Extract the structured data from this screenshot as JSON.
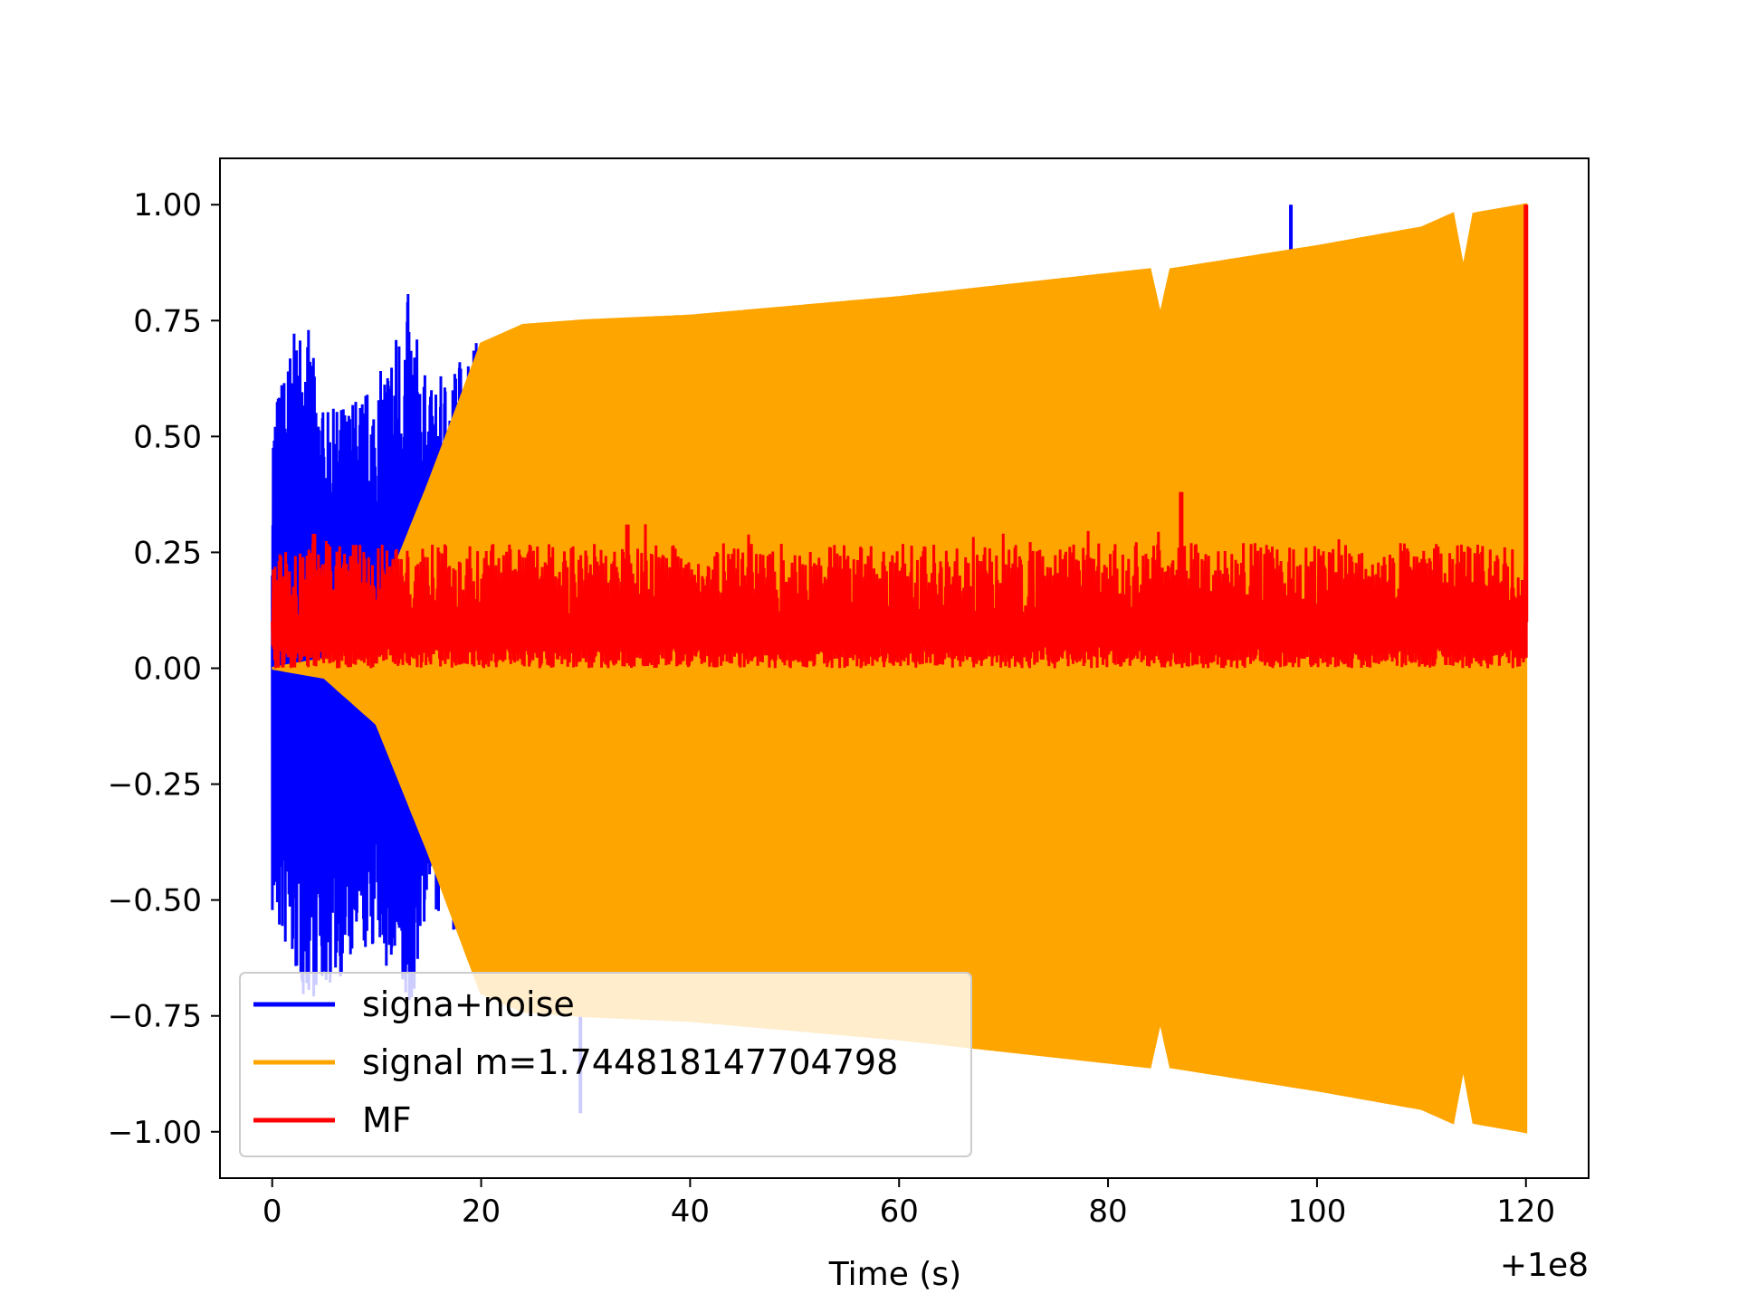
{
  "chart_data": {
    "type": "line",
    "title": "",
    "xlabel": "Time (s)",
    "ylabel": "",
    "x_offset_label": "+1e8",
    "xlim": [
      -5,
      126
    ],
    "ylim": [
      -1.1,
      1.1
    ],
    "xticks": [
      0,
      20,
      40,
      60,
      80,
      100,
      120
    ],
    "xtick_labels": [
      "0",
      "20",
      "40",
      "60",
      "80",
      "100",
      "120"
    ],
    "yticks": [
      1.0,
      0.75,
      0.5,
      0.25,
      0.0,
      -0.25,
      -0.5,
      -0.75,
      -1.0
    ],
    "ytick_labels": [
      "1.00",
      "0.75",
      "0.50",
      "0.25",
      "0.00",
      "−0.25",
      "−0.50",
      "−0.75",
      "−1.00"
    ],
    "grid": false,
    "legend_position": "lower-left",
    "series": [
      {
        "name": "signa+noise",
        "color": "#0000ff",
        "envelope_upper": [
          [
            0,
            0.57
          ],
          [
            3,
            0.79
          ],
          [
            5,
            0.55
          ],
          [
            10,
            0.62
          ],
          [
            13,
            0.81
          ],
          [
            15,
            0.6
          ],
          [
            19,
            0.71
          ],
          [
            20,
            0.72
          ],
          [
            46,
            0.74
          ]
        ],
        "envelope_lower": [
          [
            0,
            -0.55
          ],
          [
            3,
            -0.72
          ],
          [
            5,
            -0.7
          ],
          [
            10,
            -0.6
          ],
          [
            13,
            -0.78
          ],
          [
            15,
            -0.5
          ],
          [
            29.5,
            -0.96
          ]
        ],
        "spikes": [
          [
            97.5,
            1.0
          ],
          [
            29.5,
            -0.96
          ]
        ]
      },
      {
        "name": "signal m=1.744818147704798",
        "color": "#ffa500",
        "envelope": [
          [
            0,
            0.0
          ],
          [
            5,
            0.02
          ],
          [
            10,
            0.12
          ],
          [
            15,
            0.4
          ],
          [
            20,
            0.7
          ],
          [
            24,
            0.74
          ],
          [
            30,
            0.75
          ],
          [
            40,
            0.76
          ],
          [
            60,
            0.8
          ],
          [
            80,
            0.85
          ],
          [
            84,
            0.86
          ],
          [
            85,
            0.76
          ],
          [
            86,
            0.86
          ],
          [
            100,
            0.91
          ],
          [
            110,
            0.95
          ],
          [
            113,
            0.98
          ],
          [
            114,
            0.86
          ],
          [
            115,
            0.98
          ],
          [
            120,
            1.0
          ]
        ]
      },
      {
        "name": "MF",
        "color": "#ff0000",
        "baseline": [
          0.0,
          0.1
        ],
        "typical_peak": 0.25,
        "max_peaks": [
          [
            4,
            0.29
          ],
          [
            34,
            0.31
          ],
          [
            87,
            0.38
          ],
          [
            120,
            1.0
          ]
        ]
      }
    ]
  }
}
